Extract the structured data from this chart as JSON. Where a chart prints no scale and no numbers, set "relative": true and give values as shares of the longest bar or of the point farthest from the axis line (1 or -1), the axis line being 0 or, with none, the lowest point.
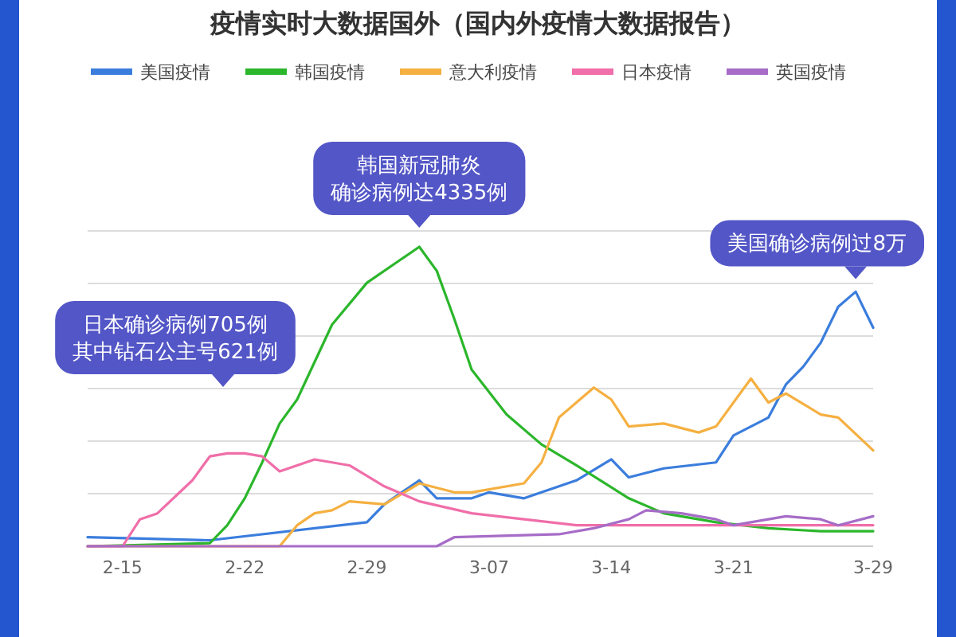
{
  "chart_data": {
    "type": "line",
    "title": "疫情实时大数据国外（国内外疫情大数据报告）",
    "relative": true,
    "grid": "y",
    "legend": "top",
    "xlim": [
      "--02-13",
      "--03-29"
    ],
    "xticks": [
      {
        "value": "--02-15",
        "label": "2-15"
      },
      {
        "value": "--02-22",
        "label": "2-22"
      },
      {
        "value": "--02-29",
        "label": "2-29"
      },
      {
        "value": "--03-07",
        "label": "3-07"
      },
      {
        "value": "--03-14",
        "label": "3-14"
      },
      {
        "value": "--03-21",
        "label": "3-21"
      },
      {
        "value": "--03-29",
        "label": "3-29"
      }
    ],
    "series": [
      {
        "name": "美国疫情",
        "color": "#3b7ddd",
        "x": [
          "--02-13",
          "--02-20",
          "--02-29",
          "--03-01",
          "--03-03",
          "--03-04",
          "--03-06",
          "--03-07",
          "--03-09",
          "--03-12",
          "--03-14",
          "--03-15",
          "--03-17",
          "--03-20",
          "--03-21",
          "--03-23",
          "--03-24",
          "--03-25",
          "--03-26",
          "--03-27",
          "--03-28",
          "--03-29"
        ],
        "values": [
          0.03,
          0.02,
          0.08,
          0.14,
          0.22,
          0.16,
          0.16,
          0.18,
          0.16,
          0.22,
          0.29,
          0.23,
          0.26,
          0.28,
          0.37,
          0.43,
          0.54,
          0.6,
          0.68,
          0.8,
          0.85,
          0.73
        ]
      },
      {
        "name": "韩国疫情",
        "color": "#2bb62b",
        "x": [
          "--02-13",
          "--02-20",
          "--02-21",
          "--02-22",
          "--02-23",
          "--02-24",
          "--02-25",
          "--02-27",
          "--02-29",
          "--03-02",
          "--03-03",
          "--03-04",
          "--03-05",
          "--03-06",
          "--03-08",
          "--03-10",
          "--03-12",
          "--03-15",
          "--03-17",
          "--03-20",
          "--03-23",
          "--03-26",
          "--03-29"
        ],
        "values": [
          0,
          0.01,
          0.07,
          0.16,
          0.28,
          0.41,
          0.49,
          0.74,
          0.88,
          0.96,
          1.0,
          0.92,
          0.76,
          0.59,
          0.44,
          0.34,
          0.27,
          0.16,
          0.11,
          0.08,
          0.06,
          0.05,
          0.05
        ]
      },
      {
        "name": "意大利疫情",
        "color": "#f5b041",
        "x": [
          "--02-13",
          "--02-24",
          "--02-25",
          "--02-26",
          "--02-27",
          "--02-28",
          "--03-01",
          "--03-03",
          "--03-05",
          "--03-06",
          "--03-09",
          "--03-10",
          "--03-11",
          "--03-12",
          "--03-13",
          "--03-14",
          "--03-15",
          "--03-17",
          "--03-19",
          "--03-20",
          "--03-22",
          "--03-23",
          "--03-24",
          "--03-26",
          "--03-27",
          "--03-29"
        ],
        "values": [
          0,
          0,
          0.07,
          0.11,
          0.12,
          0.15,
          0.14,
          0.21,
          0.18,
          0.18,
          0.21,
          0.28,
          0.43,
          0.48,
          0.53,
          0.49,
          0.4,
          0.41,
          0.38,
          0.4,
          0.56,
          0.48,
          0.51,
          0.44,
          0.43,
          0.32
        ]
      },
      {
        "name": "日本疫情",
        "color": "#f06ea9",
        "x": [
          "--02-13",
          "--02-15",
          "--02-16",
          "--02-17",
          "--02-19",
          "--02-20",
          "--02-21",
          "--02-22",
          "--02-23",
          "--02-24",
          "--02-26",
          "--02-28",
          "--03-01",
          "--03-03",
          "--03-06",
          "--03-09",
          "--03-12",
          "--03-17",
          "--03-29"
        ],
        "values": [
          0,
          0,
          0.09,
          0.11,
          0.22,
          0.3,
          0.31,
          0.31,
          0.3,
          0.25,
          0.29,
          0.27,
          0.2,
          0.15,
          0.11,
          0.09,
          0.07,
          0.07,
          0.07
        ]
      },
      {
        "name": "英国疫情",
        "color": "#a66cc7",
        "x": [
          "--02-13",
          "--03-04",
          "--03-05",
          "--03-11",
          "--03-13",
          "--03-15",
          "--03-16",
          "--03-18",
          "--03-20",
          "--03-21",
          "--03-24",
          "--03-26",
          "--03-27",
          "--03-29"
        ],
        "values": [
          0,
          0,
          0.03,
          0.04,
          0.06,
          0.09,
          0.12,
          0.11,
          0.09,
          0.07,
          0.1,
          0.09,
          0.07,
          0.1
        ]
      }
    ],
    "annotations": [
      {
        "text": "韩国新冠肺炎确诊病例达4335例",
        "x": "--03-03",
        "y": 1.0
      },
      "日本确诊病例705例其中钻石公主号621例",
      {
        "text": "美国确诊病例过8万",
        "x": "--03-28",
        "y": 0.85
      }
    ]
  }
}
